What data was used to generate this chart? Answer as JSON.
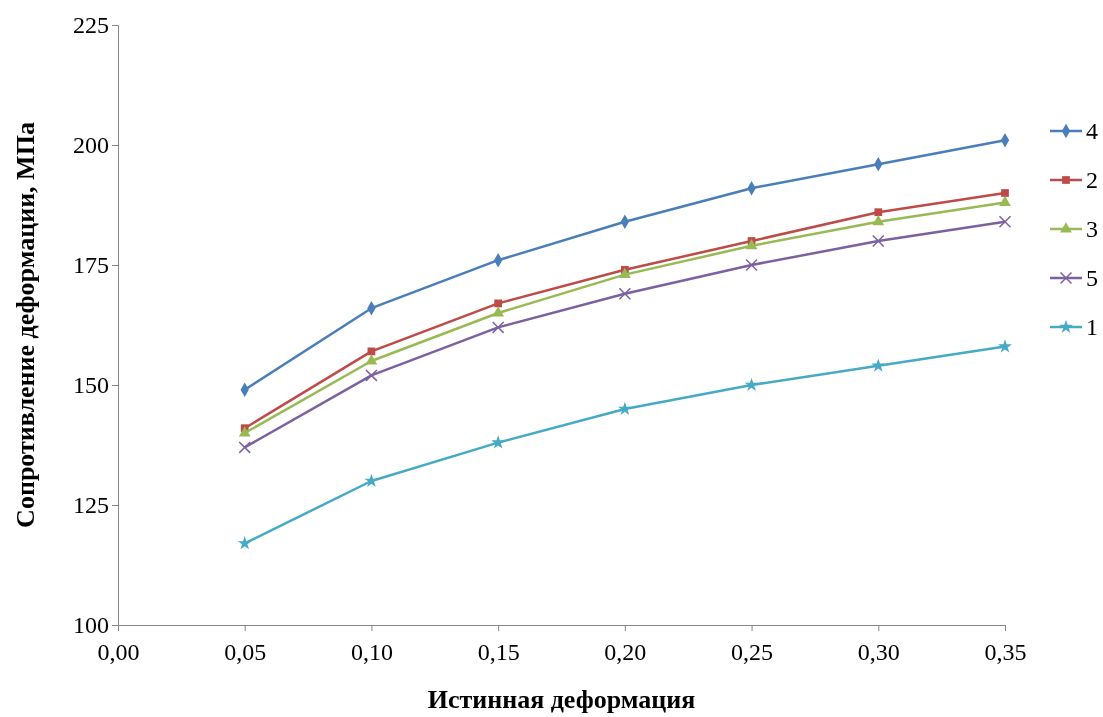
{
  "chart_data": {
    "type": "line",
    "xlabel": "Истинная деформация",
    "ylabel": "Сопротивление деформации, МПа",
    "x": [
      0.05,
      0.1,
      0.15,
      0.2,
      0.25,
      0.3,
      0.35
    ],
    "xlim": [
      0,
      0.35
    ],
    "xticks": [
      {
        "value": 0,
        "label": "0,00"
      },
      {
        "value": 0.05,
        "label": "0,05"
      },
      {
        "value": 0.1,
        "label": "0,10"
      },
      {
        "value": 0.15,
        "label": "0,15"
      },
      {
        "value": 0.2,
        "label": "0,20"
      },
      {
        "value": 0.25,
        "label": "0,25"
      },
      {
        "value": 0.3,
        "label": "0,30"
      },
      {
        "value": 0.35,
        "label": "0,35"
      }
    ],
    "ylim": [
      100,
      225
    ],
    "yticks": [
      100,
      125,
      150,
      175,
      200,
      225
    ],
    "grid": false,
    "legend": "right",
    "series": [
      {
        "name": "4",
        "color": "#4a7ebb",
        "marker": "diamond",
        "values": [
          149,
          166,
          176,
          184,
          191,
          196,
          201
        ]
      },
      {
        "name": "2",
        "color": "#be4b48",
        "marker": "square",
        "values": [
          141,
          157,
          167,
          174,
          180,
          186,
          190
        ]
      },
      {
        "name": "3",
        "color": "#98b954",
        "marker": "triangle",
        "values": [
          140,
          155,
          165,
          173,
          179,
          184,
          188
        ]
      },
      {
        "name": "5",
        "color": "#7d60a0",
        "marker": "cross",
        "values": [
          137,
          152,
          162,
          169,
          175,
          180,
          184
        ]
      },
      {
        "name": "1",
        "color": "#46aac5",
        "marker": "star",
        "values": [
          117,
          130,
          138,
          145,
          150,
          154,
          158
        ]
      }
    ]
  }
}
